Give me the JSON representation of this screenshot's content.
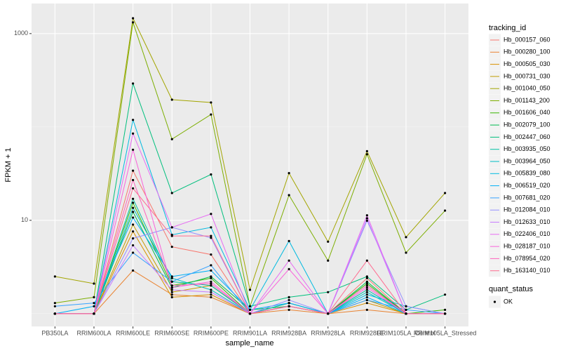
{
  "chart_data": {
    "type": "line",
    "log_y": true,
    "x_label": "sample_name",
    "y_label": "FPKM + 1",
    "categories": [
      "PB350LA",
      "RRIM600LA",
      "RRIM600LE",
      "RRIM600SE",
      "RRIM600PE",
      "RRIM901LA",
      "RRIM928BA",
      "RRIM928LA",
      "RRIM928LE",
      "RRIM105LA_Control",
      "RRIM105LA_Stressed"
    ],
    "ylim": [
      0.73,
      2100
    ],
    "yticks": [
      10,
      1000
    ],
    "y_minor_grid": [
      1,
      100
    ],
    "grid": true,
    "legend_title": "tracking_id",
    "legend2_title": "quant_status",
    "legend2_labels": [
      "OK"
    ],
    "point_color": "#000000",
    "series": [
      {
        "name": "Hb_000157_060",
        "color": "#F8766D",
        "values": [
          1,
          1,
          34,
          5.2,
          4.3,
          1,
          1.3,
          1,
          2.4,
          1,
          1
        ]
      },
      {
        "name": "Hb_000280_100",
        "color": "#EA8331",
        "values": [
          1,
          1,
          2.9,
          1.6,
          1.5,
          1,
          1.1,
          1,
          1.1,
          1,
          1
        ]
      },
      {
        "name": "Hb_000505_030",
        "color": "#D89000",
        "values": [
          1,
          1,
          7.6,
          1.5,
          1.6,
          1,
          1.2,
          1,
          1.3,
          1,
          1
        ]
      },
      {
        "name": "Hb_000731_030",
        "color": "#C09B00",
        "values": [
          1,
          1,
          9.0,
          1.7,
          2.0,
          1,
          1.2,
          1,
          1.4,
          1,
          1
        ]
      },
      {
        "name": "Hb_001040_050",
        "color": "#A3A500",
        "values": [
          2.5,
          2.1,
          1460,
          196,
          183,
          1.8,
          32,
          5.9,
          55,
          6.6,
          19.6
        ]
      },
      {
        "name": "Hb_001143_200",
        "color": "#7CAE00",
        "values": [
          1.3,
          1.5,
          1320,
          74,
          136,
          1.2,
          18.6,
          3.7,
          51,
          4.5,
          12.7
        ]
      },
      {
        "name": "Hb_001606_040",
        "color": "#39B600",
        "values": [
          1,
          1,
          15.4,
          2.0,
          2.4,
          1,
          1.3,
          1,
          2.1,
          1,
          1.1
        ]
      },
      {
        "name": "Hb_002079_100",
        "color": "#00BB4E",
        "values": [
          1,
          1,
          12.3,
          1.9,
          2.5,
          1.1,
          1.2,
          1,
          2.2,
          1,
          1
        ]
      },
      {
        "name": "Hb_002447_060",
        "color": "#00BF7D",
        "values": [
          1,
          1,
          292,
          19.6,
          31,
          1.2,
          1.5,
          1.7,
          2.5,
          1.1,
          1.6
        ]
      },
      {
        "name": "Hb_003935_050",
        "color": "#00C1A3",
        "values": [
          1,
          1,
          17,
          2.2,
          2.0,
          1,
          1.2,
          1,
          1.8,
          1,
          1
        ]
      },
      {
        "name": "Hb_003964_050",
        "color": "#00BFC4",
        "values": [
          1,
          1,
          13.6,
          2.4,
          1.8,
          1,
          1.3,
          1,
          1.7,
          1,
          1
        ]
      },
      {
        "name": "Hb_005839_080",
        "color": "#00BAE0",
        "values": [
          1,
          1,
          119,
          7.0,
          8.4,
          1.1,
          6.0,
          1,
          1.6,
          1.2,
          1
        ]
      },
      {
        "name": "Hb_006519_020",
        "color": "#00B0F6",
        "values": [
          1,
          1.2,
          10.7,
          2.5,
          2.9,
          1.1,
          1.3,
          1,
          1.5,
          1,
          1
        ]
      },
      {
        "name": "Hb_007681_020",
        "color": "#35A2FF",
        "values": [
          1.2,
          1.3,
          4.5,
          2.2,
          3.3,
          1,
          1.2,
          1,
          1.4,
          1.1,
          1
        ]
      },
      {
        "name": "Hb_012084_010",
        "color": "#9590FF",
        "values": [
          1,
          1,
          6.4,
          8.4,
          6.5,
          1,
          1.4,
          1,
          9.9,
          1.2,
          1
        ]
      },
      {
        "name": "Hb_012633_010",
        "color": "#C77CFF",
        "values": [
          1,
          1,
          5.4,
          1.8,
          1.7,
          1,
          1.2,
          1,
          10.5,
          1,
          1
        ]
      },
      {
        "name": "Hb_022406_010",
        "color": "#E76BF3",
        "values": [
          1,
          1,
          85,
          8.4,
          11.7,
          1,
          3.7,
          1,
          11.3,
          1,
          1
        ]
      },
      {
        "name": "Hb_028187_010",
        "color": "#FA62DB",
        "values": [
          1,
          1,
          57,
          1.9,
          2.2,
          1,
          3.0,
          1,
          1.9,
          1,
          1
        ]
      },
      {
        "name": "Hb_078954_020",
        "color": "#FF62BC",
        "values": [
          1,
          1,
          27,
          2.0,
          2.1,
          1,
          1.2,
          1,
          2.0,
          1,
          1
        ]
      },
      {
        "name": "Hb_163140_010",
        "color": "#FF6C91",
        "values": [
          1,
          1,
          22,
          6.8,
          6.8,
          1,
          1.2,
          1,
          3.7,
          1,
          1
        ]
      }
    ]
  }
}
